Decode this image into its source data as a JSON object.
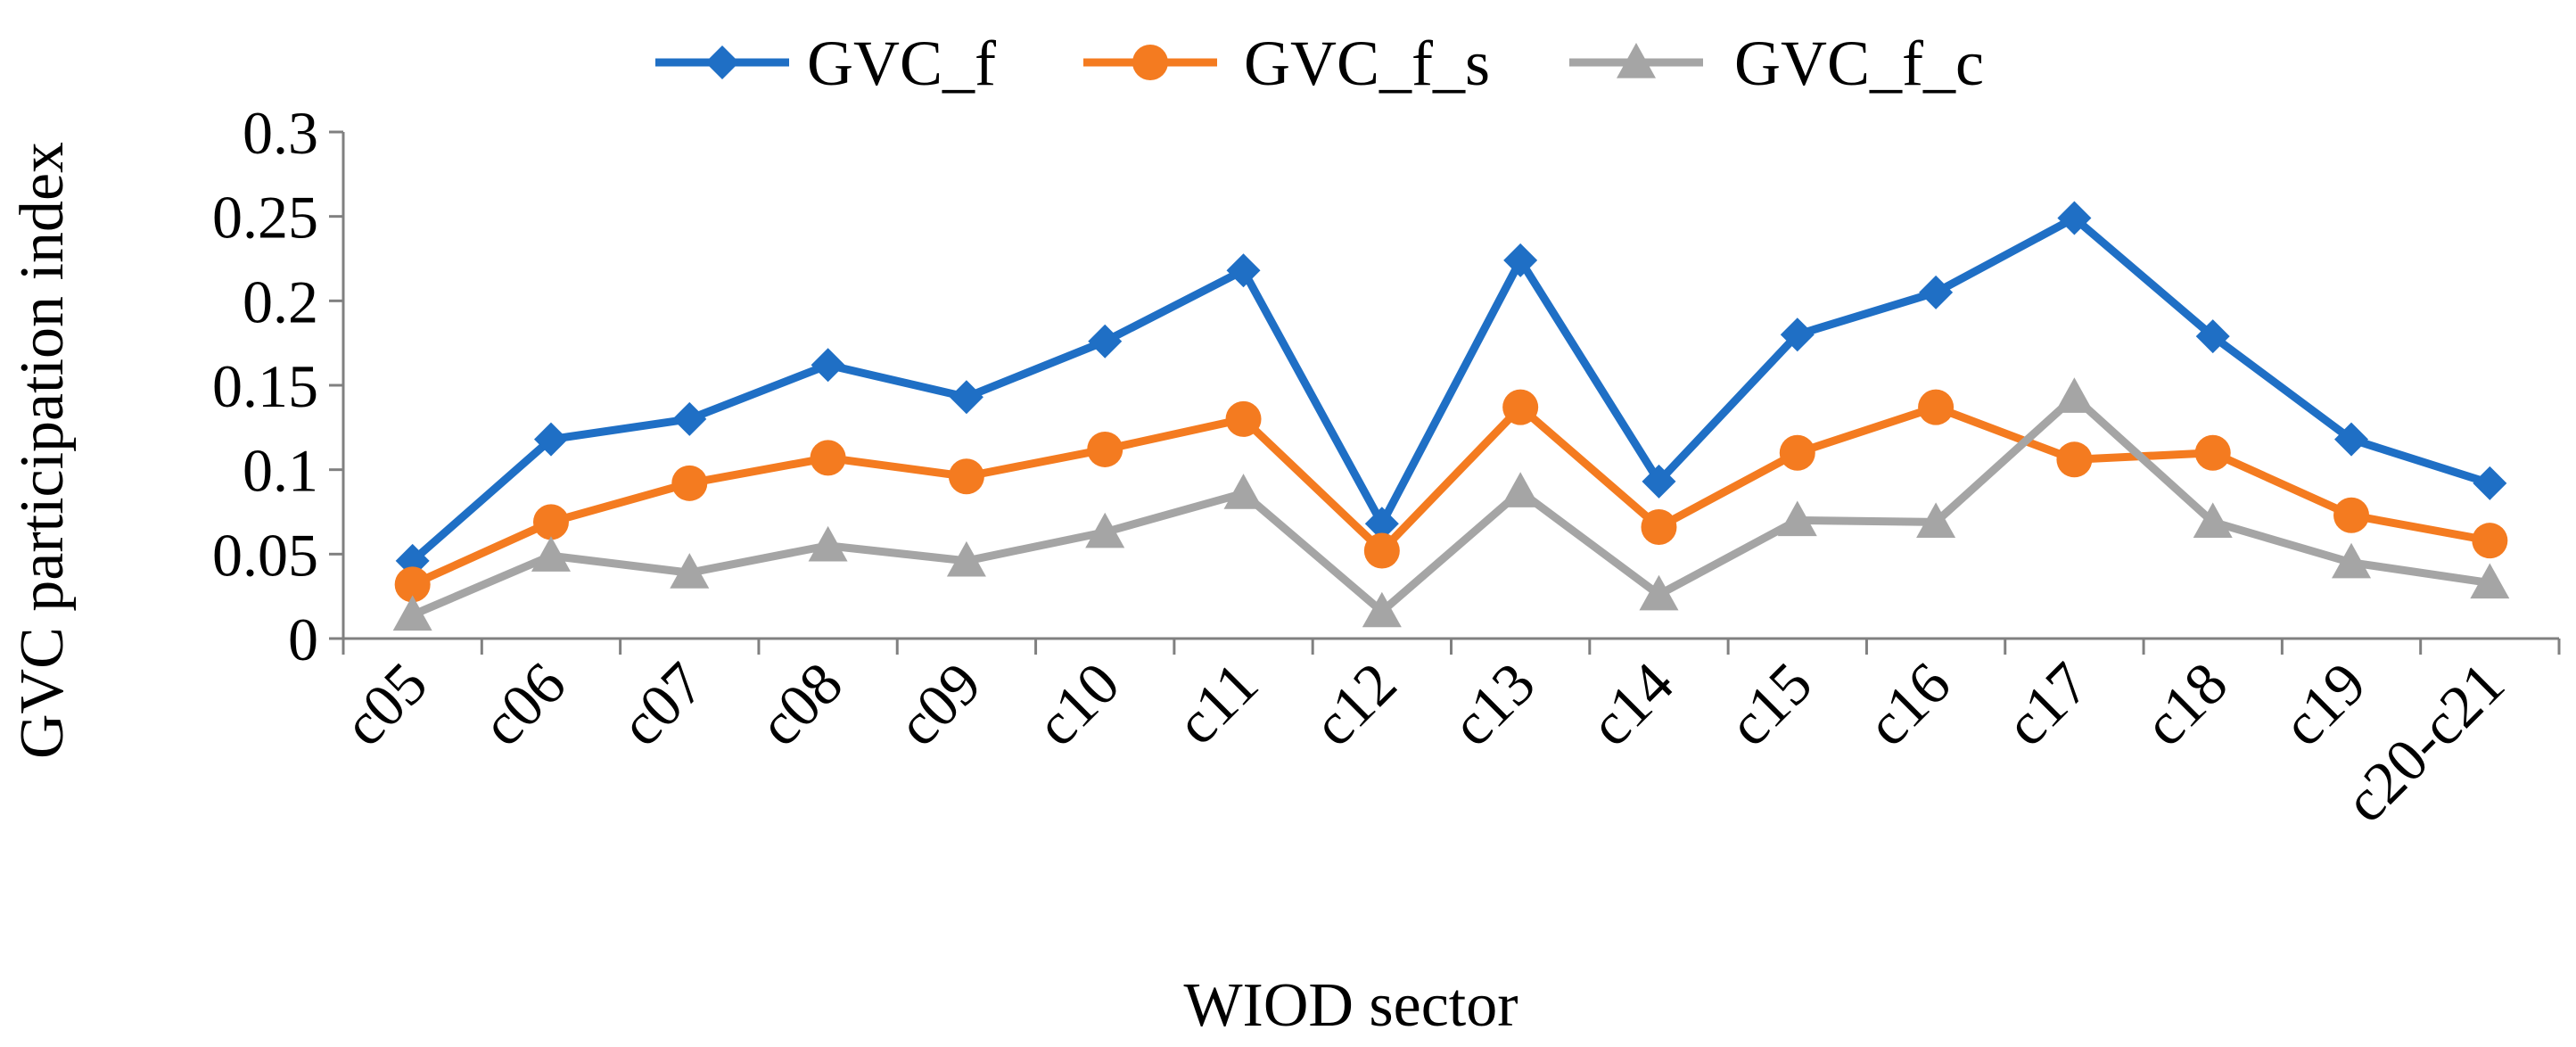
{
  "chart_data": {
    "type": "line",
    "title": "",
    "xlabel": "WIOD sector",
    "ylabel": "GVC participation index",
    "ylim": [
      0,
      0.3
    ],
    "yticks": [
      {
        "value": 0,
        "label": "0"
      },
      {
        "value": 0.05,
        "label": "0.05"
      },
      {
        "value": 0.1,
        "label": "0.1"
      },
      {
        "value": 0.15,
        "label": "0.15"
      },
      {
        "value": 0.2,
        "label": "0.2"
      },
      {
        "value": 0.25,
        "label": "0.25"
      },
      {
        "value": 0.3,
        "label": "0.3"
      }
    ],
    "grid": false,
    "legend_position": "top",
    "categories": [
      "c05",
      "c06",
      "c07",
      "c08",
      "c09",
      "c10",
      "c11",
      "c12",
      "c13",
      "c14",
      "c15",
      "c16",
      "c17",
      "c18",
      "c19",
      "c20-c21"
    ],
    "series": [
      {
        "name": "GVC_f",
        "color": "#1f6fc5",
        "marker": "diamond",
        "values": [
          0.046,
          0.118,
          0.13,
          0.162,
          0.143,
          0.176,
          0.218,
          0.068,
          0.224,
          0.093,
          0.18,
          0.205,
          0.249,
          0.179,
          0.118,
          0.092
        ]
      },
      {
        "name": "GVC_f_s",
        "color": "#f47b20",
        "marker": "circle",
        "values": [
          0.032,
          0.069,
          0.092,
          0.107,
          0.096,
          0.112,
          0.13,
          0.052,
          0.137,
          0.066,
          0.11,
          0.137,
          0.106,
          0.11,
          0.073,
          0.058
        ]
      },
      {
        "name": "GVC_f_c",
        "color": "#a5a5a5",
        "marker": "triangle",
        "values": [
          0.014,
          0.049,
          0.039,
          0.055,
          0.046,
          0.063,
          0.086,
          0.016,
          0.087,
          0.026,
          0.07,
          0.069,
          0.143,
          0.069,
          0.045,
          0.033
        ]
      }
    ]
  }
}
